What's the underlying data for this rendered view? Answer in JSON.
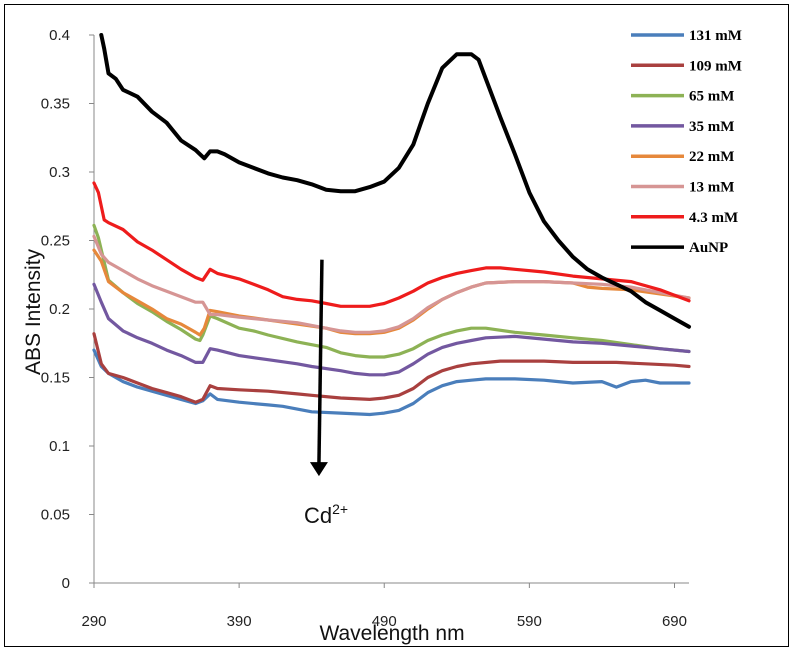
{
  "chart_data": {
    "type": "line",
    "title": "",
    "xlabel": "Wavelength nm",
    "ylabel": "ABS Intensity",
    "xlim": [
      290,
      700
    ],
    "ylim": [
      0,
      0.4
    ],
    "x_ticks": [
      "290",
      "390",
      "490",
      "590",
      "690"
    ],
    "y_ticks": [
      "0",
      "0.05",
      "0.1",
      "0.15",
      "0.2",
      "0.25",
      "0.3",
      "0.35",
      "0.4"
    ],
    "grid": false,
    "legend_position": "top-right",
    "annotation": {
      "text": "Cd",
      "superscript": "2+",
      "arrow_from": [
        445,
        0.236
      ],
      "arrow_to": [
        445,
        0.078
      ]
    },
    "series": [
      {
        "name": "131 mM",
        "color": "#4a7ebb",
        "points": [
          [
            290,
            0.17
          ],
          [
            295,
            0.158
          ],
          [
            300,
            0.153
          ],
          [
            310,
            0.147
          ],
          [
            320,
            0.143
          ],
          [
            330,
            0.14
          ],
          [
            340,
            0.137
          ],
          [
            350,
            0.134
          ],
          [
            360,
            0.131
          ],
          [
            365,
            0.133
          ],
          [
            370,
            0.138
          ],
          [
            375,
            0.134
          ],
          [
            390,
            0.132
          ],
          [
            410,
            0.13
          ],
          [
            420,
            0.129
          ],
          [
            440,
            0.125
          ],
          [
            460,
            0.124
          ],
          [
            480,
            0.123
          ],
          [
            490,
            0.124
          ],
          [
            500,
            0.126
          ],
          [
            510,
            0.131
          ],
          [
            520,
            0.139
          ],
          [
            530,
            0.144
          ],
          [
            540,
            0.147
          ],
          [
            550,
            0.148
          ],
          [
            560,
            0.149
          ],
          [
            580,
            0.149
          ],
          [
            600,
            0.148
          ],
          [
            610,
            0.147
          ],
          [
            620,
            0.146
          ],
          [
            640,
            0.147
          ],
          [
            650,
            0.143
          ],
          [
            660,
            0.147
          ],
          [
            670,
            0.148
          ],
          [
            680,
            0.146
          ],
          [
            700,
            0.146
          ]
        ]
      },
      {
        "name": "109 mM",
        "color": "#a9403f",
        "points": [
          [
            290,
            0.182
          ],
          [
            295,
            0.16
          ],
          [
            300,
            0.153
          ],
          [
            310,
            0.15
          ],
          [
            320,
            0.146
          ],
          [
            330,
            0.142
          ],
          [
            340,
            0.139
          ],
          [
            350,
            0.136
          ],
          [
            360,
            0.132
          ],
          [
            365,
            0.134
          ],
          [
            370,
            0.144
          ],
          [
            375,
            0.142
          ],
          [
            390,
            0.141
          ],
          [
            410,
            0.14
          ],
          [
            430,
            0.138
          ],
          [
            440,
            0.137
          ],
          [
            460,
            0.135
          ],
          [
            480,
            0.134
          ],
          [
            490,
            0.135
          ],
          [
            500,
            0.137
          ],
          [
            510,
            0.142
          ],
          [
            520,
            0.15
          ],
          [
            530,
            0.155
          ],
          [
            540,
            0.158
          ],
          [
            550,
            0.16
          ],
          [
            570,
            0.162
          ],
          [
            600,
            0.162
          ],
          [
            620,
            0.161
          ],
          [
            650,
            0.161
          ],
          [
            670,
            0.16
          ],
          [
            690,
            0.159
          ],
          [
            700,
            0.158
          ]
        ]
      },
      {
        "name": "65 mM",
        "color": "#8db255",
        "points": [
          [
            290,
            0.261
          ],
          [
            293,
            0.252
          ],
          [
            300,
            0.221
          ],
          [
            310,
            0.212
          ],
          [
            320,
            0.204
          ],
          [
            330,
            0.198
          ],
          [
            340,
            0.191
          ],
          [
            350,
            0.185
          ],
          [
            360,
            0.178
          ],
          [
            363,
            0.177
          ],
          [
            365,
            0.181
          ],
          [
            370,
            0.195
          ],
          [
            375,
            0.193
          ],
          [
            390,
            0.186
          ],
          [
            400,
            0.184
          ],
          [
            410,
            0.181
          ],
          [
            430,
            0.176
          ],
          [
            450,
            0.172
          ],
          [
            460,
            0.168
          ],
          [
            470,
            0.166
          ],
          [
            480,
            0.165
          ],
          [
            490,
            0.165
          ],
          [
            500,
            0.167
          ],
          [
            510,
            0.171
          ],
          [
            520,
            0.177
          ],
          [
            530,
            0.181
          ],
          [
            540,
            0.184
          ],
          [
            550,
            0.186
          ],
          [
            560,
            0.186
          ],
          [
            580,
            0.183
          ],
          [
            600,
            0.181
          ],
          [
            620,
            0.179
          ],
          [
            640,
            0.177
          ],
          [
            660,
            0.174
          ],
          [
            680,
            0.171
          ],
          [
            700,
            0.169
          ]
        ]
      },
      {
        "name": "35 mM",
        "color": "#7358a0",
        "points": [
          [
            290,
            0.218
          ],
          [
            295,
            0.205
          ],
          [
            300,
            0.193
          ],
          [
            310,
            0.184
          ],
          [
            320,
            0.179
          ],
          [
            330,
            0.175
          ],
          [
            340,
            0.17
          ],
          [
            350,
            0.166
          ],
          [
            360,
            0.161
          ],
          [
            365,
            0.161
          ],
          [
            370,
            0.171
          ],
          [
            375,
            0.17
          ],
          [
            390,
            0.166
          ],
          [
            410,
            0.163
          ],
          [
            430,
            0.16
          ],
          [
            440,
            0.158
          ],
          [
            460,
            0.155
          ],
          [
            470,
            0.153
          ],
          [
            480,
            0.152
          ],
          [
            490,
            0.152
          ],
          [
            500,
            0.154
          ],
          [
            510,
            0.16
          ],
          [
            520,
            0.167
          ],
          [
            530,
            0.172
          ],
          [
            540,
            0.175
          ],
          [
            550,
            0.177
          ],
          [
            560,
            0.179
          ],
          [
            580,
            0.18
          ],
          [
            600,
            0.178
          ],
          [
            620,
            0.176
          ],
          [
            640,
            0.175
          ],
          [
            660,
            0.173
          ],
          [
            680,
            0.171
          ],
          [
            700,
            0.169
          ]
        ]
      },
      {
        "name": "22 mM",
        "color": "#e6883b",
        "points": [
          [
            290,
            0.243
          ],
          [
            295,
            0.235
          ],
          [
            300,
            0.22
          ],
          [
            310,
            0.212
          ],
          [
            320,
            0.206
          ],
          [
            330,
            0.2
          ],
          [
            340,
            0.193
          ],
          [
            350,
            0.189
          ],
          [
            360,
            0.183
          ],
          [
            363,
            0.181
          ],
          [
            366,
            0.186
          ],
          [
            370,
            0.199
          ],
          [
            375,
            0.198
          ],
          [
            390,
            0.195
          ],
          [
            410,
            0.192
          ],
          [
            430,
            0.189
          ],
          [
            450,
            0.186
          ],
          [
            460,
            0.183
          ],
          [
            470,
            0.182
          ],
          [
            480,
            0.182
          ],
          [
            490,
            0.183
          ],
          [
            500,
            0.186
          ],
          [
            510,
            0.192
          ],
          [
            520,
            0.2
          ],
          [
            530,
            0.207
          ],
          [
            540,
            0.212
          ],
          [
            550,
            0.216
          ],
          [
            560,
            0.219
          ],
          [
            580,
            0.22
          ],
          [
            600,
            0.22
          ],
          [
            620,
            0.219
          ],
          [
            630,
            0.216
          ],
          [
            640,
            0.215
          ],
          [
            660,
            0.214
          ],
          [
            680,
            0.211
          ],
          [
            700,
            0.208
          ]
        ]
      },
      {
        "name": "13 mM",
        "color": "#d69594",
        "points": [
          [
            290,
            0.253
          ],
          [
            295,
            0.24
          ],
          [
            300,
            0.234
          ],
          [
            310,
            0.228
          ],
          [
            320,
            0.222
          ],
          [
            330,
            0.217
          ],
          [
            340,
            0.213
          ],
          [
            350,
            0.209
          ],
          [
            360,
            0.205
          ],
          [
            365,
            0.205
          ],
          [
            370,
            0.196
          ],
          [
            375,
            0.196
          ],
          [
            390,
            0.194
          ],
          [
            410,
            0.192
          ],
          [
            430,
            0.19
          ],
          [
            440,
            0.188
          ],
          [
            450,
            0.186
          ],
          [
            460,
            0.184
          ],
          [
            470,
            0.183
          ],
          [
            480,
            0.183
          ],
          [
            490,
            0.184
          ],
          [
            500,
            0.187
          ],
          [
            510,
            0.193
          ],
          [
            520,
            0.201
          ],
          [
            530,
            0.207
          ],
          [
            540,
            0.212
          ],
          [
            550,
            0.216
          ],
          [
            560,
            0.219
          ],
          [
            580,
            0.22
          ],
          [
            600,
            0.22
          ],
          [
            620,
            0.219
          ],
          [
            640,
            0.218
          ],
          [
            660,
            0.216
          ],
          [
            680,
            0.212
          ],
          [
            700,
            0.208
          ]
        ]
      },
      {
        "name": "4.3 mM",
        "color": "#ee1c1c",
        "points": [
          [
            290,
            0.292
          ],
          [
            293,
            0.285
          ],
          [
            297,
            0.265
          ],
          [
            300,
            0.263
          ],
          [
            310,
            0.258
          ],
          [
            320,
            0.249
          ],
          [
            330,
            0.243
          ],
          [
            340,
            0.236
          ],
          [
            350,
            0.229
          ],
          [
            360,
            0.223
          ],
          [
            365,
            0.221
          ],
          [
            370,
            0.229
          ],
          [
            375,
            0.226
          ],
          [
            390,
            0.222
          ],
          [
            400,
            0.218
          ],
          [
            410,
            0.214
          ],
          [
            420,
            0.209
          ],
          [
            430,
            0.207
          ],
          [
            440,
            0.206
          ],
          [
            450,
            0.204
          ],
          [
            460,
            0.202
          ],
          [
            470,
            0.202
          ],
          [
            480,
            0.202
          ],
          [
            490,
            0.204
          ],
          [
            500,
            0.208
          ],
          [
            510,
            0.213
          ],
          [
            520,
            0.219
          ],
          [
            530,
            0.223
          ],
          [
            540,
            0.226
          ],
          [
            550,
            0.228
          ],
          [
            560,
            0.23
          ],
          [
            570,
            0.23
          ],
          [
            580,
            0.229
          ],
          [
            600,
            0.227
          ],
          [
            620,
            0.224
          ],
          [
            640,
            0.222
          ],
          [
            660,
            0.22
          ],
          [
            680,
            0.214
          ],
          [
            700,
            0.206
          ]
        ]
      },
      {
        "name": "AuNP",
        "color": "#000000",
        "points": [
          [
            295,
            0.4
          ],
          [
            297,
            0.39
          ],
          [
            300,
            0.372
          ],
          [
            305,
            0.368
          ],
          [
            310,
            0.36
          ],
          [
            320,
            0.355
          ],
          [
            330,
            0.344
          ],
          [
            340,
            0.336
          ],
          [
            350,
            0.323
          ],
          [
            360,
            0.316
          ],
          [
            363,
            0.313
          ],
          [
            366,
            0.31
          ],
          [
            370,
            0.315
          ],
          [
            375,
            0.315
          ],
          [
            380,
            0.313
          ],
          [
            390,
            0.307
          ],
          [
            400,
            0.303
          ],
          [
            410,
            0.299
          ],
          [
            420,
            0.296
          ],
          [
            430,
            0.294
          ],
          [
            440,
            0.291
          ],
          [
            450,
            0.287
          ],
          [
            460,
            0.286
          ],
          [
            470,
            0.286
          ],
          [
            480,
            0.289
          ],
          [
            490,
            0.293
          ],
          [
            500,
            0.303
          ],
          [
            510,
            0.32
          ],
          [
            515,
            0.335
          ],
          [
            520,
            0.35
          ],
          [
            530,
            0.376
          ],
          [
            540,
            0.386
          ],
          [
            550,
            0.386
          ],
          [
            555,
            0.382
          ],
          [
            560,
            0.368
          ],
          [
            570,
            0.34
          ],
          [
            580,
            0.313
          ],
          [
            590,
            0.285
          ],
          [
            600,
            0.264
          ],
          [
            610,
            0.25
          ],
          [
            620,
            0.238
          ],
          [
            630,
            0.229
          ],
          [
            640,
            0.223
          ],
          [
            650,
            0.218
          ],
          [
            660,
            0.213
          ],
          [
            670,
            0.205
          ],
          [
            680,
            0.199
          ],
          [
            690,
            0.193
          ],
          [
            700,
            0.187
          ]
        ]
      }
    ]
  }
}
